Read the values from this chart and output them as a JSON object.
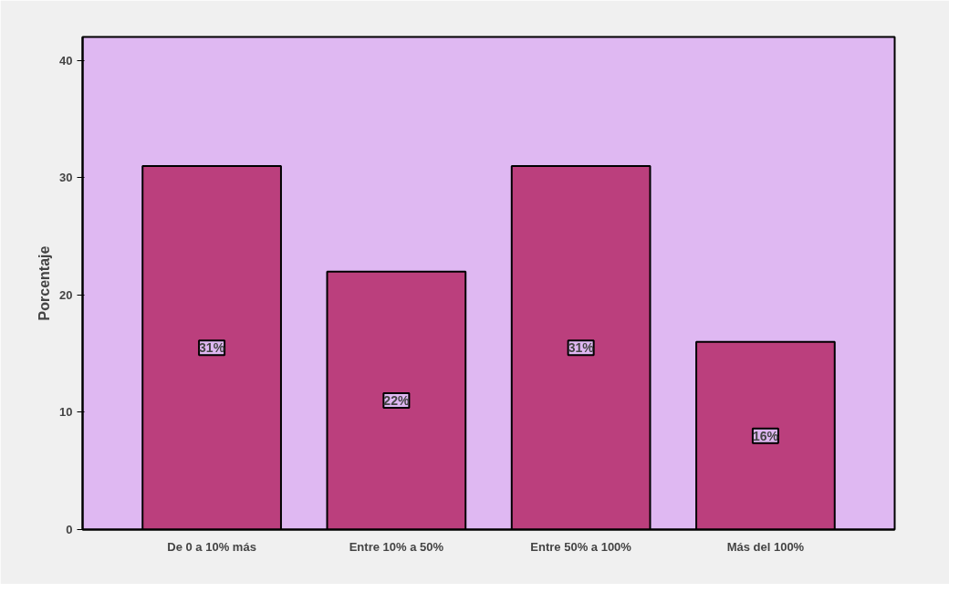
{
  "chart_data": {
    "type": "bar",
    "ylabel": "Porcentaje",
    "categories": [
      "De 0 a 10% más",
      "Entre 10% a 50%",
      "Entre 50% a 100%",
      "Más del 100%"
    ],
    "values": [
      31,
      22,
      31,
      16
    ],
    "value_labels": [
      "31%",
      "22%",
      "31%",
      "16%"
    ],
    "color": "#bb3f7d",
    "ylim": [
      0,
      42
    ],
    "yticks": [
      0,
      10,
      20,
      30,
      40
    ],
    "grid": false
  }
}
